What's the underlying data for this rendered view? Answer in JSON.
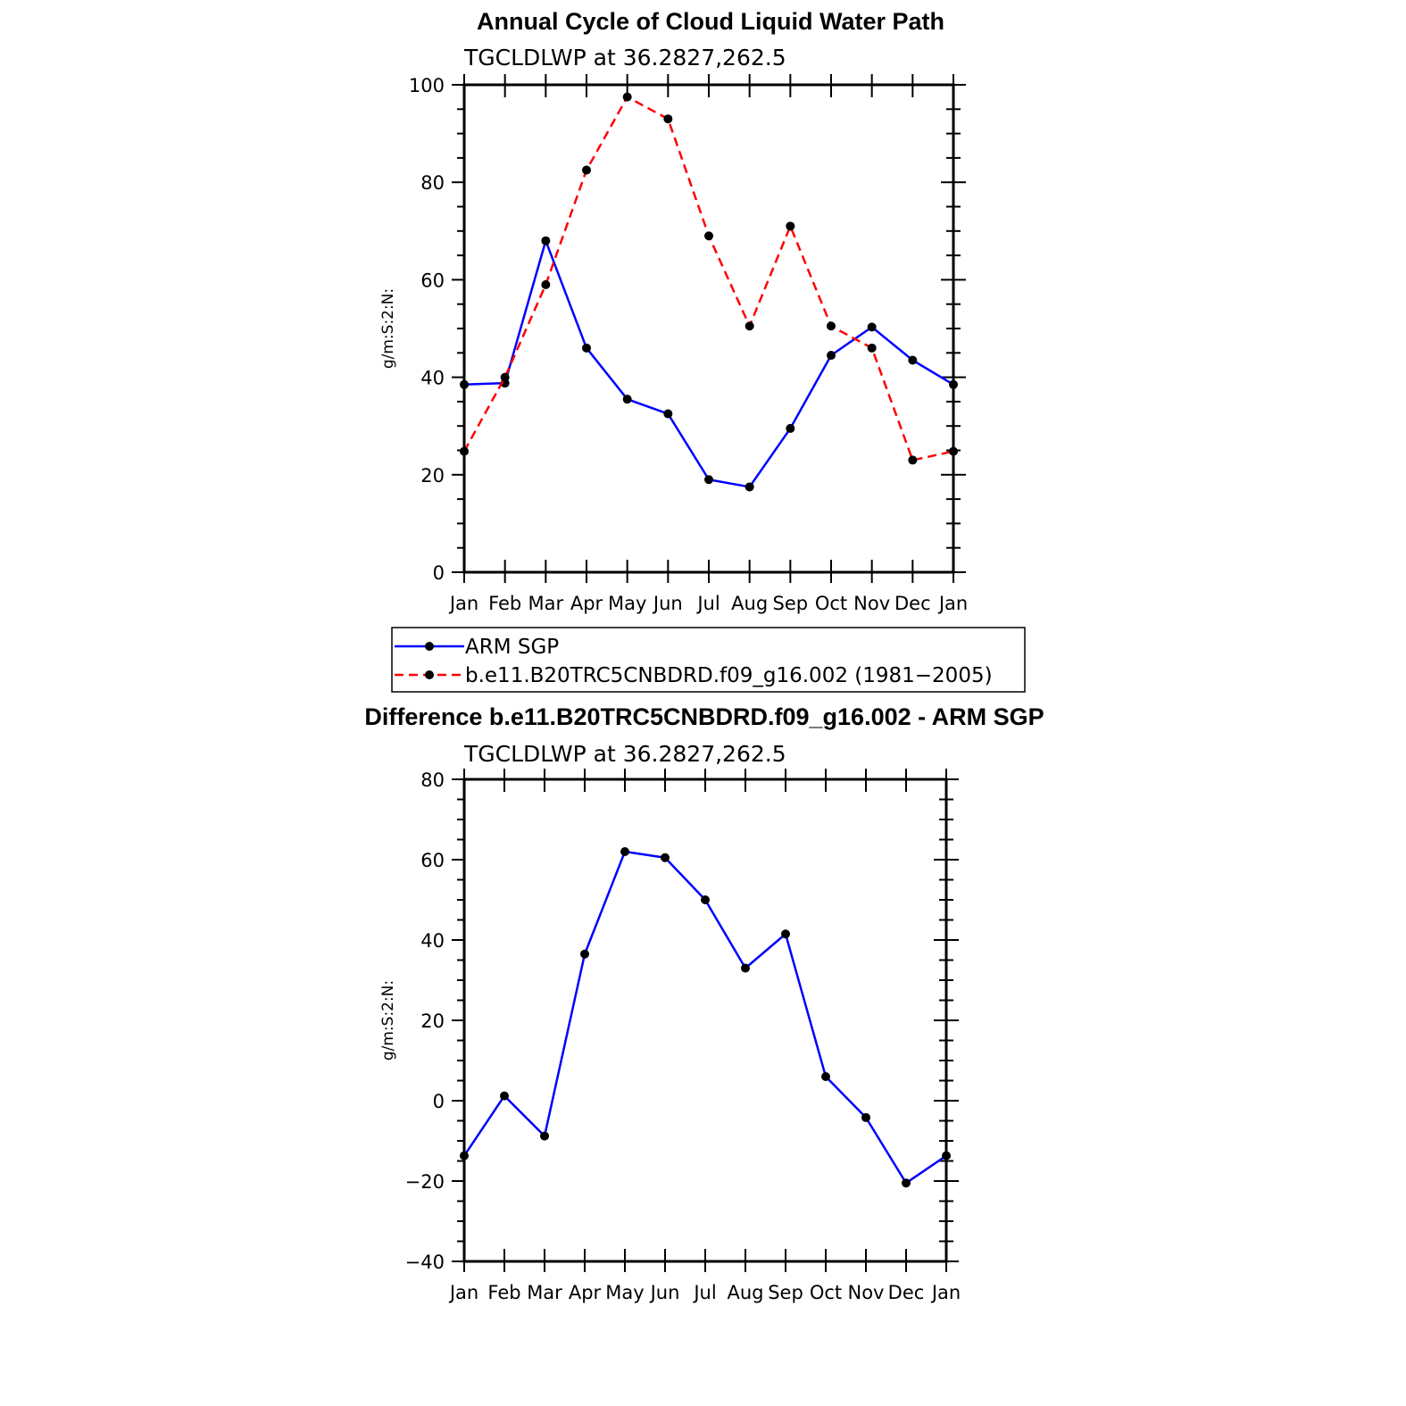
{
  "chart_data": [
    {
      "type": "line",
      "title": "Annual Cycle of Cloud Liquid Water Path",
      "subtitle": "TGCLDLWP at 36.2827,262.5",
      "ylabel": "g/m:S:2:N:",
      "xlabel": "",
      "categories": [
        "Jan",
        "Feb",
        "Mar",
        "Apr",
        "May",
        "Jun",
        "Jul",
        "Aug",
        "Sep",
        "Oct",
        "Nov",
        "Dec",
        "Jan"
      ],
      "ylim": [
        0,
        100
      ],
      "yticks": [
        0,
        20,
        40,
        60,
        80,
        100
      ],
      "grid": false,
      "legend_position": "bottom",
      "series": [
        {
          "name": "ARM SGP",
          "color": "#0000ff",
          "line_style": "solid",
          "marker": "dot",
          "values": [
            38.5,
            38.8,
            68.0,
            46.0,
            35.5,
            32.5,
            19.0,
            17.5,
            29.5,
            44.5,
            50.3,
            43.5,
            38.5
          ]
        },
        {
          "name": "b.e11.B20TRC5CNBDRD.f09_g16.002 (1981−2005)",
          "color": "#ff0000",
          "line_style": "dashed",
          "marker": "dot",
          "values": [
            24.8,
            40.0,
            59.0,
            82.5,
            97.5,
            93.0,
            69.0,
            50.5,
            71.0,
            50.5,
            46.0,
            23.0,
            24.8
          ]
        }
      ]
    },
    {
      "type": "line",
      "title": "Difference b.e11.B20TRC5CNBDRD.f09_g16.002 - ARM SGP",
      "subtitle": "TGCLDLWP at 36.2827,262.5",
      "ylabel": "g/m:S:2:N:",
      "xlabel": "",
      "categories": [
        "Jan",
        "Feb",
        "Mar",
        "Apr",
        "May",
        "Jun",
        "Jul",
        "Aug",
        "Sep",
        "Oct",
        "Nov",
        "Dec",
        "Jan"
      ],
      "ylim": [
        -40,
        80
      ],
      "yticks": [
        -40,
        -20,
        0,
        20,
        40,
        60,
        80
      ],
      "ytick_labels": [
        "−40",
        "−20",
        "0",
        "20",
        "40",
        "60",
        "80"
      ],
      "grid": false,
      "series": [
        {
          "color": "#0000ff",
          "line_style": "solid",
          "marker": "dot",
          "values": [
            -13.7,
            1.2,
            -8.8,
            36.5,
            62.0,
            60.5,
            50.0,
            33.0,
            41.5,
            6.0,
            -4.2,
            -20.5,
            -13.7
          ]
        }
      ]
    }
  ]
}
